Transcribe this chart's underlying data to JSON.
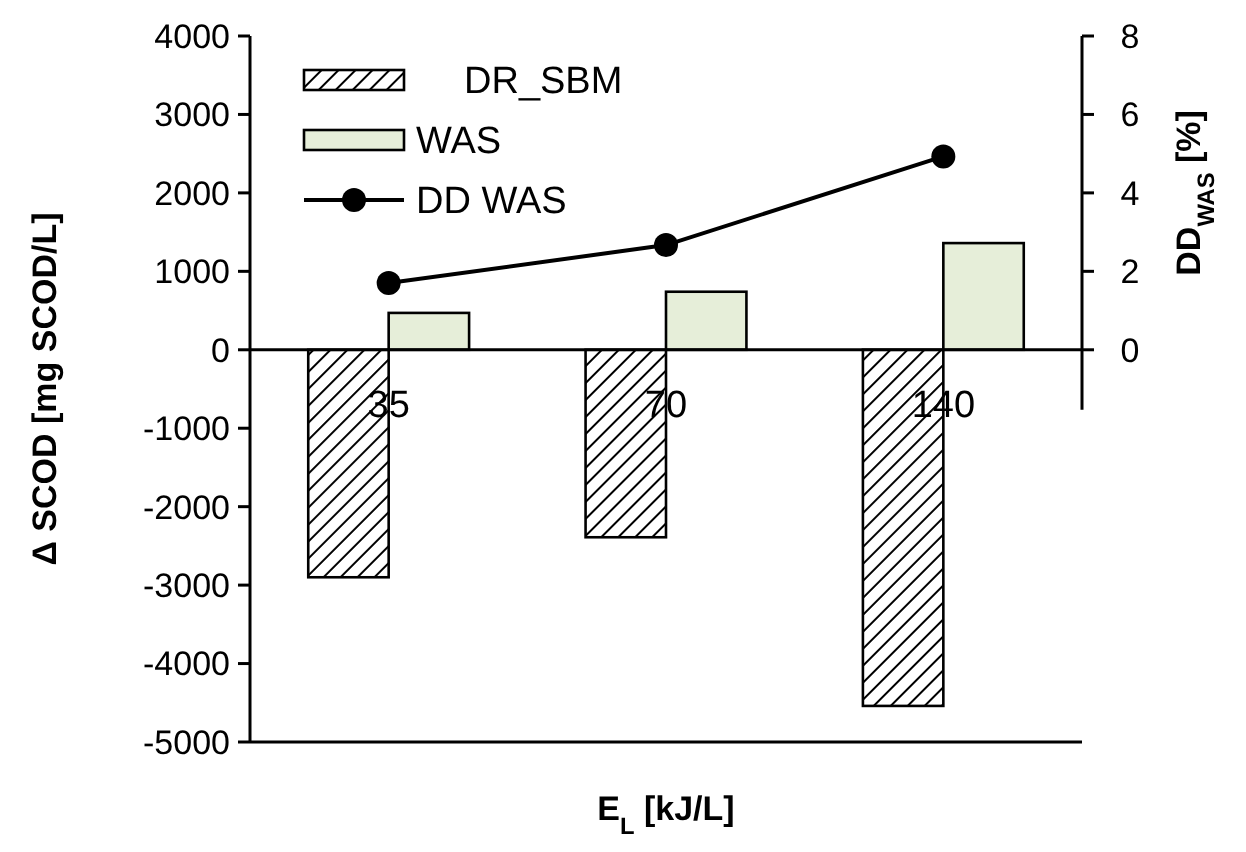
{
  "chart_data": {
    "type": "bar",
    "xlabel": "E$_{L}$ [kJ/L]",
    "ylabel": "Δ SCOD [mg SCOD/L]",
    "y2label": "DD$_{WAS}$ [%]",
    "categories": [
      "35",
      "70",
      "140"
    ],
    "series": [
      {
        "name": "DR_SBM",
        "color": "#000000",
        "values": [
          -2900,
          -2390,
          -4540
        ]
      },
      {
        "name": "WAS",
        "color": "#e6eed9",
        "values": [
          470,
          740,
          1360
        ]
      },
      {
        "name": "DD WAS",
        "type": "line",
        "axis": "y2",
        "color": "#000000",
        "values": [
          1.7,
          2.67,
          4.93
        ],
        "marker": "circle"
      }
    ],
    "ylim": [
      -5000,
      4000
    ],
    "yticks": [
      -5000,
      -4000,
      -3000,
      -2000,
      -1000,
      0,
      1000,
      2000,
      3000,
      4000
    ],
    "y2lim": [
      -10,
      8
    ],
    "y2ticks": [
      0,
      2,
      4,
      6,
      8
    ],
    "legend": "top left",
    "grid": false
  }
}
